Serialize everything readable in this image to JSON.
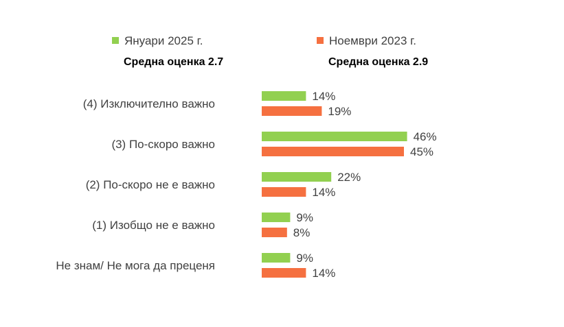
{
  "chart_data": {
    "type": "bar",
    "orientation": "horizontal",
    "categories": [
      "(4) Изключително важно",
      "(3) По-скоро важно",
      "(2) По-скоро не е важно",
      "(1) Изобщо не е важно",
      "Не знам/ Не мога да преценя"
    ],
    "series": [
      {
        "name": "Януари 2025 г.",
        "color": "#92d050",
        "average_label": "Средна оценка 2.7",
        "values": [
          14,
          46,
          22,
          9,
          9
        ],
        "value_labels": [
          "14%",
          "46%",
          "22%",
          "9%",
          "9%"
        ]
      },
      {
        "name": "Ноември 2023 г.",
        "color": "#f57040",
        "average_label": "Средна оценка 2.9",
        "values": [
          19,
          45,
          14,
          8,
          14
        ],
        "value_labels": [
          "19%",
          "45%",
          "14%",
          "8%",
          "14%"
        ]
      }
    ],
    "unit": "%",
    "legend_position": "top",
    "grid": false
  }
}
